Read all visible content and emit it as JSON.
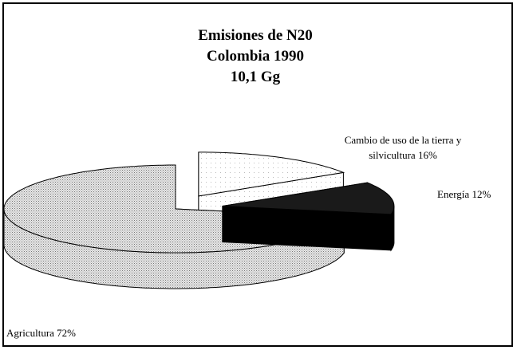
{
  "chart_data": {
    "type": "pie3d",
    "title": [
      "Emisiones de N20",
      "Colombia 1990",
      "10,1 Gg"
    ],
    "categories": [
      "Cambio de uso de la tierra y silvicultura",
      "Energía",
      "Agricultura"
    ],
    "values": [
      16,
      12,
      72
    ],
    "value_labels": [
      "16%",
      "12%",
      "72%"
    ],
    "colors": [
      "#ffffff",
      "#1a1a1a",
      "#c8c8c8"
    ]
  }
}
